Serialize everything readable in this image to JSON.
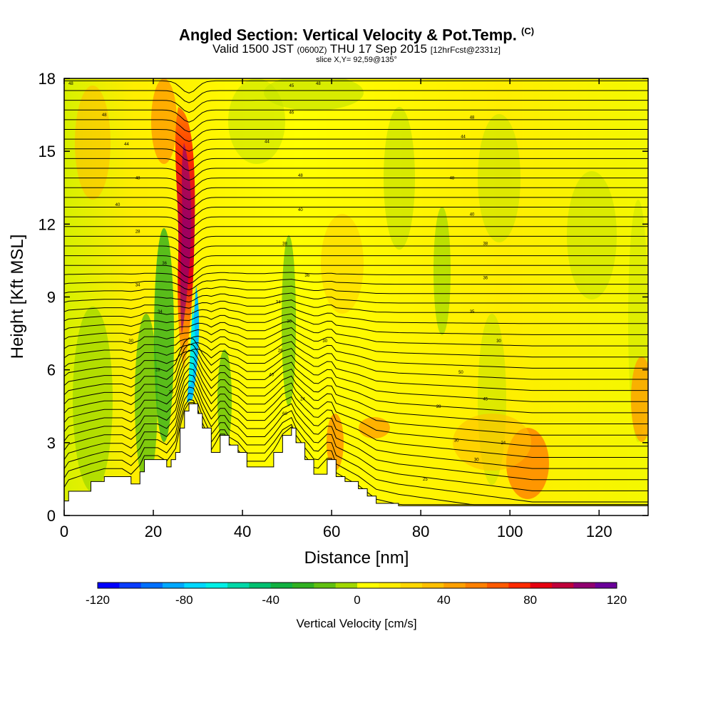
{
  "header": {
    "title": "Angled Section: Vertical Velocity & Pot.Temp.",
    "title_mark": "(C)",
    "valid_prefix": "Valid 1500 JST",
    "valid_z": "(0600Z)",
    "valid_date": "THU 17 Sep 2015",
    "valid_fcst": "[12hrFcst@2331z]",
    "slice": "slice X,Y= 92,59@135°"
  },
  "chart_data": {
    "type": "heatmap",
    "xlabel": "Distance [nm]",
    "ylabel": "Height [Kft MSL]",
    "xlim": [
      0,
      131
    ],
    "ylim": [
      0,
      18
    ],
    "x_ticks": [
      "0",
      "20",
      "40",
      "60",
      "80",
      "100",
      "120"
    ],
    "x_tick_values": [
      0,
      20,
      40,
      60,
      80,
      100,
      120
    ],
    "y_ticks": [
      "0",
      "3",
      "6",
      "9",
      "12",
      "15",
      "18"
    ],
    "y_tick_values": [
      0,
      3,
      6,
      9,
      12,
      15,
      18
    ],
    "terrain_kft": [
      [
        0,
        0.6
      ],
      [
        1,
        1.0
      ],
      [
        6,
        1.4
      ],
      [
        9,
        1.6
      ],
      [
        13,
        1.6
      ],
      [
        15,
        1.3
      ],
      [
        17,
        1.8
      ],
      [
        18,
        2.3
      ],
      [
        21,
        2.3
      ],
      [
        23,
        2.0
      ],
      [
        24,
        2.3
      ],
      [
        25,
        2.6
      ],
      [
        26,
        3.6
      ],
      [
        27,
        4.3
      ],
      [
        28,
        4.6
      ],
      [
        29,
        4.6
      ],
      [
        30,
        4.2
      ],
      [
        31,
        3.6
      ],
      [
        33,
        2.6
      ],
      [
        35,
        3.3
      ],
      [
        36,
        3.3
      ],
      [
        37,
        2.9
      ],
      [
        39,
        2.6
      ],
      [
        41,
        2.0
      ],
      [
        45,
        2.0
      ],
      [
        47,
        2.6
      ],
      [
        49,
        3.3
      ],
      [
        51,
        3.6
      ],
      [
        52,
        3.0
      ],
      [
        54,
        2.3
      ],
      [
        56,
        1.7
      ],
      [
        57,
        1.7
      ],
      [
        59,
        2.3
      ],
      [
        60,
        2.3
      ],
      [
        61,
        1.6
      ],
      [
        63,
        1.4
      ],
      [
        66,
        1.1
      ],
      [
        68,
        0.8
      ],
      [
        70,
        0.5
      ],
      [
        75,
        0.4
      ],
      [
        131,
        0.4
      ]
    ],
    "colorbar": {
      "label": "Vertical Velocity [cm/s]",
      "tick_labels": [
        "-120",
        "-80",
        "-40",
        "0",
        "40",
        "80",
        "120"
      ],
      "tick_values": [
        -120,
        -80,
        -40,
        0,
        40,
        80,
        120
      ],
      "range": [
        -120,
        120
      ],
      "colors": [
        "#0000ff",
        "#0a3cff",
        "#0070ff",
        "#00a8ff",
        "#00d8ff",
        "#00f0e6",
        "#00d8a8",
        "#00c070",
        "#10b040",
        "#30b020",
        "#60c010",
        "#a0d800",
        "#ffff00",
        "#ffee00",
        "#ffd800",
        "#ffc000",
        "#ffa000",
        "#ff8000",
        "#ff5a00",
        "#ff2a00",
        "#e60010",
        "#c0003a",
        "#900070",
        "#6a009a"
      ]
    },
    "contour_labels": [
      {
        "x": 1.5,
        "y": 17.8,
        "text": "48"
      },
      {
        "x": 9,
        "y": 16.5,
        "text": "48"
      },
      {
        "x": 14,
        "y": 15.3,
        "text": "44"
      },
      {
        "x": 16.5,
        "y": 13.9,
        "text": "48"
      },
      {
        "x": 12,
        "y": 12.8,
        "text": "40"
      },
      {
        "x": 16.5,
        "y": 11.7,
        "text": "28"
      },
      {
        "x": 22.5,
        "y": 10.4,
        "text": "36"
      },
      {
        "x": 16.5,
        "y": 9.5,
        "text": "34"
      },
      {
        "x": 21.5,
        "y": 8.4,
        "text": "34"
      },
      {
        "x": 15,
        "y": 7.2,
        "text": "30"
      },
      {
        "x": 21,
        "y": 6.0,
        "text": "28"
      },
      {
        "x": 24,
        "y": 5.1,
        "text": "26"
      },
      {
        "x": 51,
        "y": 17.7,
        "text": "45"
      },
      {
        "x": 57,
        "y": 17.8,
        "text": "48"
      },
      {
        "x": 51,
        "y": 16.6,
        "text": "46"
      },
      {
        "x": 45.5,
        "y": 15.4,
        "text": "44"
      },
      {
        "x": 53,
        "y": 14.0,
        "text": "48"
      },
      {
        "x": 53,
        "y": 12.6,
        "text": "40"
      },
      {
        "x": 49.5,
        "y": 11.2,
        "text": "38"
      },
      {
        "x": 54.5,
        "y": 9.9,
        "text": "36"
      },
      {
        "x": 48,
        "y": 8.8,
        "text": "34"
      },
      {
        "x": 50.5,
        "y": 8.0,
        "text": "35"
      },
      {
        "x": 48.5,
        "y": 6.8,
        "text": "28"
      },
      {
        "x": 46.5,
        "y": 5.8,
        "text": "40"
      },
      {
        "x": 53.5,
        "y": 4.8,
        "text": "24"
      },
      {
        "x": 49.5,
        "y": 4.2,
        "text": "60"
      },
      {
        "x": 58.5,
        "y": 7.2,
        "text": "30"
      },
      {
        "x": 91.5,
        "y": 16.4,
        "text": "48"
      },
      {
        "x": 89.5,
        "y": 15.6,
        "text": "44"
      },
      {
        "x": 87,
        "y": 13.9,
        "text": "48"
      },
      {
        "x": 91.5,
        "y": 12.4,
        "text": "40"
      },
      {
        "x": 94.5,
        "y": 11.2,
        "text": "38"
      },
      {
        "x": 94.5,
        "y": 9.8,
        "text": "36"
      },
      {
        "x": 91.5,
        "y": 8.4,
        "text": "35"
      },
      {
        "x": 97.5,
        "y": 7.2,
        "text": "30"
      },
      {
        "x": 89,
        "y": 5.9,
        "text": "50"
      },
      {
        "x": 94.5,
        "y": 4.8,
        "text": "45"
      },
      {
        "x": 84,
        "y": 4.5,
        "text": "28"
      },
      {
        "x": 88,
        "y": 3.1,
        "text": "30"
      },
      {
        "x": 98.5,
        "y": 3.0,
        "text": "24"
      },
      {
        "x": 92.5,
        "y": 2.3,
        "text": "30"
      },
      {
        "x": 81,
        "y": 1.5,
        "text": "25"
      }
    ]
  }
}
